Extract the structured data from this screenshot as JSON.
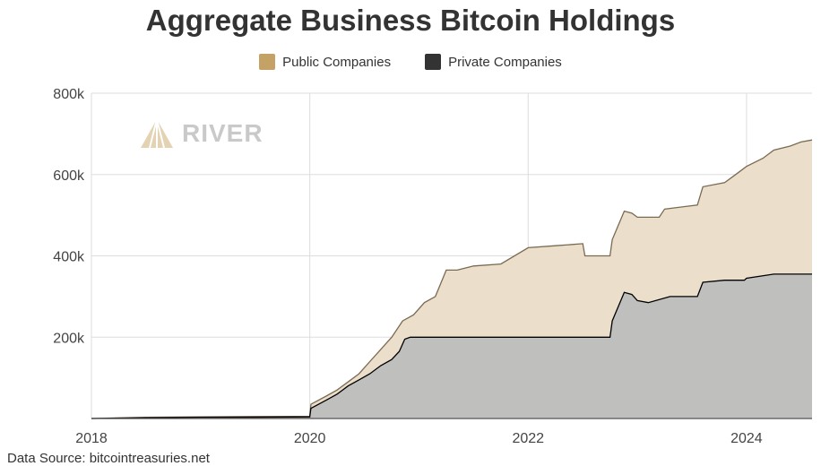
{
  "title": "Aggregate Business Bitcoin Holdings",
  "source": "Data Source: bitcointreasuries.net",
  "logo_text": "RIVER",
  "legend": [
    {
      "label": "Public Companies",
      "color": "#c4a265"
    },
    {
      "label": "Private Companies",
      "color": "#333333"
    }
  ],
  "chart_data": {
    "type": "area",
    "stacked": true,
    "grid": true,
    "legend_position": "top",
    "ylim": [
      0,
      800000
    ],
    "xlim": [
      2018.0,
      2024.6
    ],
    "y_ticks": [
      200000,
      400000,
      600000,
      800000
    ],
    "y_tick_labels": [
      "200k",
      "400k",
      "600k",
      "800k"
    ],
    "x_ticks": [
      2018,
      2020,
      2022,
      2024
    ],
    "x_tick_labels": [
      "2018",
      "2020",
      "2022",
      "2024"
    ],
    "series": [
      {
        "name": "Private Companies",
        "line_color": "#000000",
        "fill_color": "#bdbdbd",
        "points": [
          [
            2018.0,
            0
          ],
          [
            2018.5,
            2000
          ],
          [
            2019.0,
            3000
          ],
          [
            2019.5,
            3000
          ],
          [
            2020.0,
            4000
          ],
          [
            2020.01,
            25000
          ],
          [
            2020.15,
            45000
          ],
          [
            2020.25,
            60000
          ],
          [
            2020.35,
            80000
          ],
          [
            2020.45,
            95000
          ],
          [
            2020.55,
            110000
          ],
          [
            2020.65,
            130000
          ],
          [
            2020.75,
            145000
          ],
          [
            2020.82,
            165000
          ],
          [
            2020.87,
            195000
          ],
          [
            2020.92,
            200000
          ],
          [
            2021.5,
            200000
          ],
          [
            2022.0,
            200000
          ],
          [
            2022.5,
            200000
          ],
          [
            2022.75,
            200000
          ],
          [
            2022.77,
            240000
          ],
          [
            2022.88,
            310000
          ],
          [
            2022.95,
            305000
          ],
          [
            2023.0,
            290000
          ],
          [
            2023.1,
            285000
          ],
          [
            2023.3,
            300000
          ],
          [
            2023.55,
            300000
          ],
          [
            2023.6,
            335000
          ],
          [
            2023.8,
            340000
          ],
          [
            2023.98,
            340000
          ],
          [
            2024.0,
            345000
          ],
          [
            2024.25,
            355000
          ],
          [
            2024.6,
            355000
          ]
        ]
      },
      {
        "name": "Public Companies",
        "line_color": "#7a6a52",
        "fill_color": "#ebdfcb",
        "points": [
          [
            2018.0,
            0
          ],
          [
            2018.5,
            3000
          ],
          [
            2019.0,
            4000
          ],
          [
            2019.5,
            5000
          ],
          [
            2020.0,
            5000
          ],
          [
            2020.01,
            35000
          ],
          [
            2020.15,
            55000
          ],
          [
            2020.25,
            70000
          ],
          [
            2020.35,
            90000
          ],
          [
            2020.45,
            110000
          ],
          [
            2020.55,
            140000
          ],
          [
            2020.65,
            170000
          ],
          [
            2020.75,
            200000
          ],
          [
            2020.85,
            240000
          ],
          [
            2020.95,
            255000
          ],
          [
            2021.05,
            285000
          ],
          [
            2021.15,
            300000
          ],
          [
            2021.25,
            365000
          ],
          [
            2021.35,
            365000
          ],
          [
            2021.5,
            375000
          ],
          [
            2021.75,
            380000
          ],
          [
            2022.0,
            420000
          ],
          [
            2022.25,
            425000
          ],
          [
            2022.5,
            430000
          ],
          [
            2022.52,
            400000
          ],
          [
            2022.75,
            400000
          ],
          [
            2022.77,
            440000
          ],
          [
            2022.88,
            510000
          ],
          [
            2022.95,
            505000
          ],
          [
            2023.0,
            495000
          ],
          [
            2023.2,
            495000
          ],
          [
            2023.25,
            515000
          ],
          [
            2023.55,
            525000
          ],
          [
            2023.6,
            570000
          ],
          [
            2023.8,
            580000
          ],
          [
            2023.9,
            600000
          ],
          [
            2024.0,
            620000
          ],
          [
            2024.15,
            640000
          ],
          [
            2024.25,
            660000
          ],
          [
            2024.4,
            670000
          ],
          [
            2024.5,
            680000
          ],
          [
            2024.6,
            685000
          ]
        ]
      }
    ]
  }
}
